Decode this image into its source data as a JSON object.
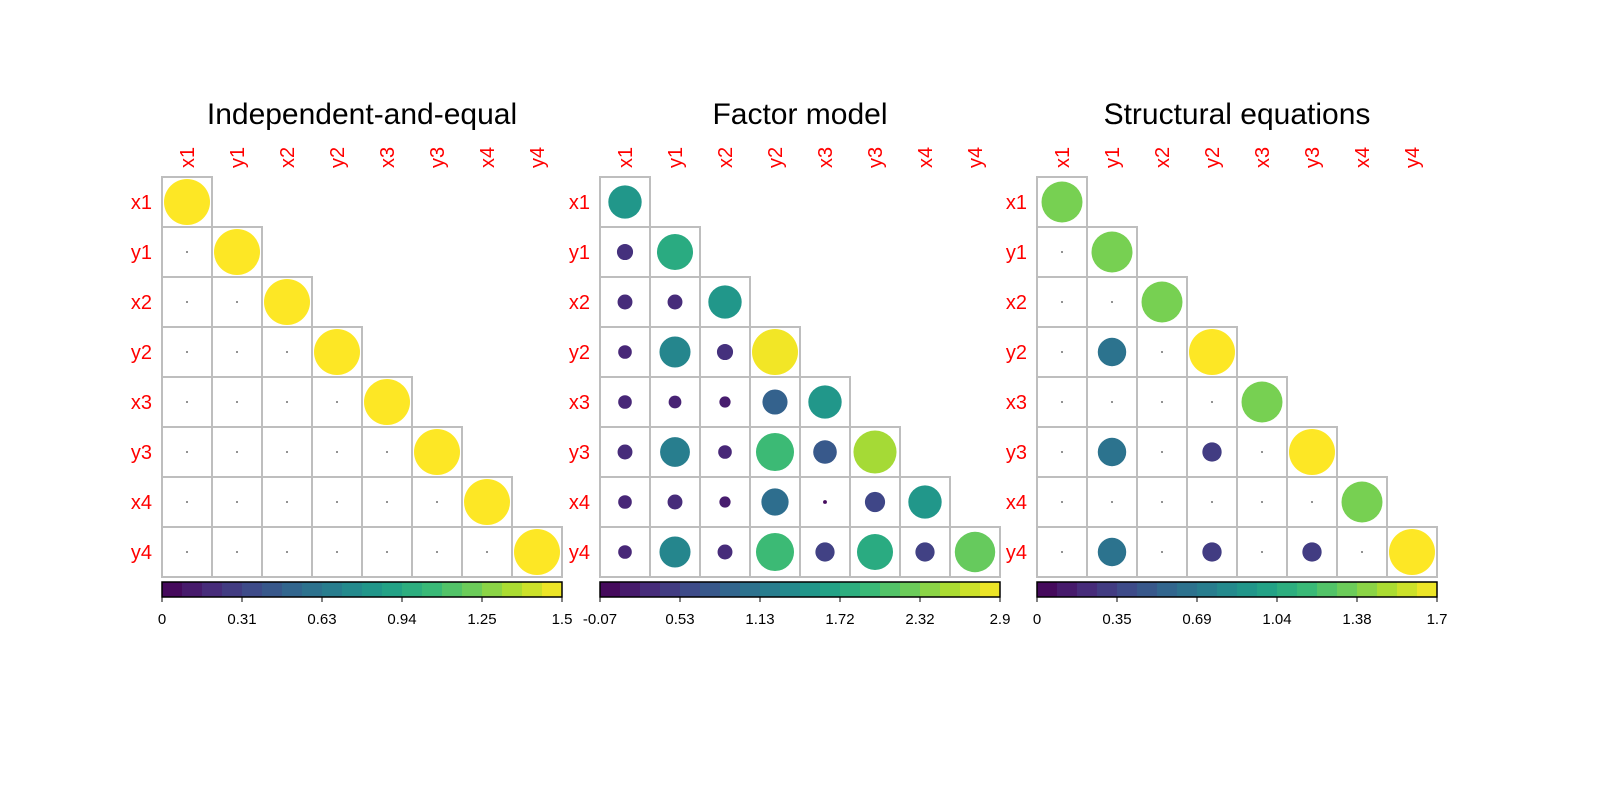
{
  "chart_data": [
    {
      "type": "heatmap",
      "title": "Independent-and-equal",
      "variables": [
        "x1",
        "y1",
        "x2",
        "y2",
        "x3",
        "y3",
        "x4",
        "y4"
      ],
      "values": [
        [
          1.5
        ],
        [
          0.0,
          1.5
        ],
        [
          0.0,
          0.0,
          1.5
        ],
        [
          0.0,
          0.0,
          0.0,
          1.5
        ],
        [
          0.0,
          0.0,
          0.0,
          0.0,
          1.5
        ],
        [
          0.0,
          0.0,
          0.0,
          0.0,
          0.0,
          1.5
        ],
        [
          0.0,
          0.0,
          0.0,
          0.0,
          0.0,
          0.0,
          1.5
        ],
        [
          0.0,
          0.0,
          0.0,
          0.0,
          0.0,
          0.0,
          0.0,
          1.5
        ]
      ],
      "colorbar": {
        "min": 0,
        "max": 1.5,
        "ticks": [
          "0",
          "0.31",
          "0.63",
          "0.94",
          "1.25",
          "1.5"
        ]
      },
      "colormap": "viridis",
      "triangle": "lower",
      "grid": true
    },
    {
      "type": "heatmap",
      "title": "Factor model",
      "variables": [
        "x1",
        "y1",
        "x2",
        "y2",
        "x3",
        "y3",
        "x4",
        "y4"
      ],
      "values": [
        [
          1.5
        ],
        [
          0.35,
          1.75
        ],
        [
          0.3,
          0.3,
          1.5
        ],
        [
          0.25,
          1.3,
          0.35,
          2.85
        ],
        [
          0.25,
          0.22,
          0.17,
          0.85,
          1.5
        ],
        [
          0.3,
          1.2,
          0.25,
          1.95,
          0.75,
          2.5
        ],
        [
          0.25,
          0.3,
          0.17,
          1.0,
          0.02,
          0.55,
          1.5
        ],
        [
          0.25,
          1.3,
          0.3,
          1.95,
          0.5,
          1.75,
          0.5,
          2.2
        ]
      ],
      "colorbar": {
        "min": -0.07,
        "max": 2.9,
        "ticks": [
          "-0.07",
          "0.53",
          "1.13",
          "1.72",
          "2.32",
          "2.9"
        ]
      },
      "colormap": "viridis",
      "triangle": "lower",
      "grid": true
    },
    {
      "type": "heatmap",
      "title": "Structural equations",
      "variables": [
        "x1",
        "y1",
        "x2",
        "y2",
        "x3",
        "y3",
        "x4",
        "y4"
      ],
      "values": [
        [
          1.35
        ],
        [
          0.0,
          1.35
        ],
        [
          0.0,
          0.0,
          1.35
        ],
        [
          0.0,
          0.65,
          0.0,
          1.7
        ],
        [
          0.0,
          0.0,
          0.0,
          0.0,
          1.35
        ],
        [
          0.0,
          0.65,
          0.0,
          0.3,
          0.0,
          1.7
        ],
        [
          0.0,
          0.0,
          0.0,
          0.0,
          0.0,
          0.0,
          1.35
        ],
        [
          0.0,
          0.65,
          0.0,
          0.3,
          0.0,
          0.3,
          0.0,
          1.7
        ]
      ],
      "colorbar": {
        "min": 0,
        "max": 1.7,
        "ticks": [
          "0",
          "0.35",
          "0.69",
          "1.04",
          "1.38",
          "1.7"
        ]
      },
      "colormap": "viridis",
      "triangle": "lower",
      "grid": true
    }
  ],
  "theme": {
    "label_color": "#ff0000",
    "grid_color": "#bebebe",
    "title_color": "#000000"
  }
}
